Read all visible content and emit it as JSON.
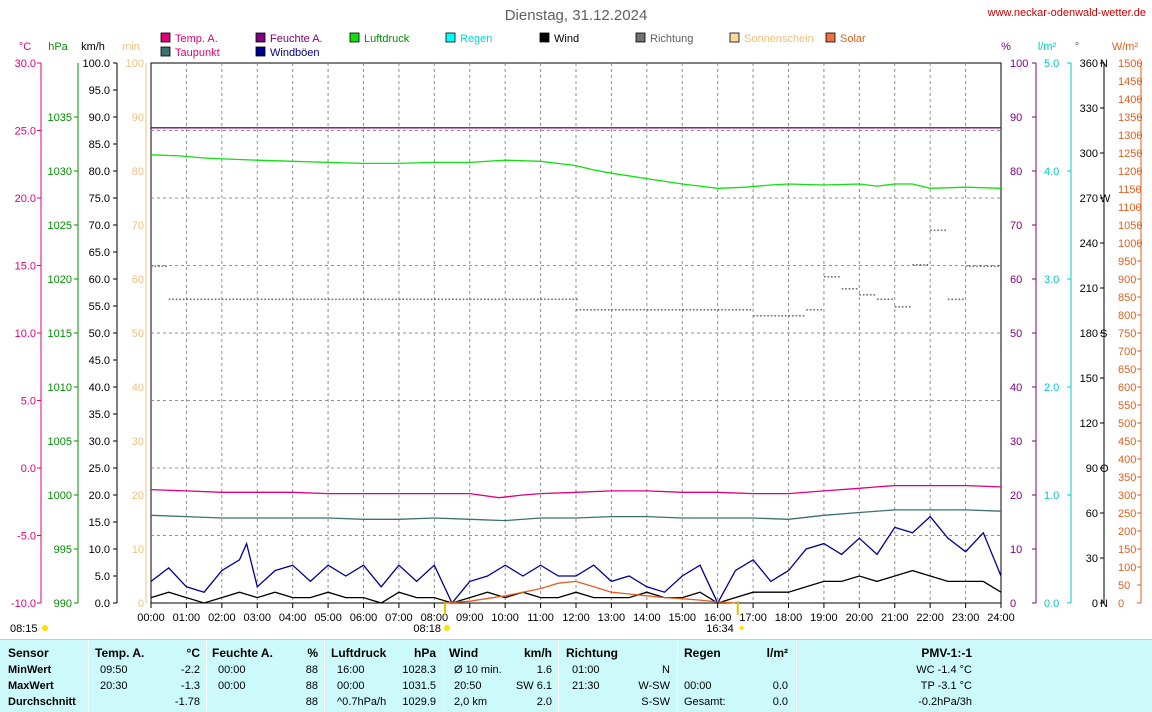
{
  "title": "Dienstag, 31.12.2024",
  "site": "www.neckar-odenwald-wetter.de",
  "legend": [
    {
      "label": "Temp. A.",
      "color": "#e0007a",
      "col": 0,
      "row": 0
    },
    {
      "label": "Taupunkt",
      "color": "#e0007a",
      "swatch": "#3a7070",
      "col": 0,
      "row": 1
    },
    {
      "label": "Feuchte A.",
      "color": "#800080",
      "col": 1,
      "row": 0
    },
    {
      "label": "Windböen",
      "color": "#000080",
      "swatch": "#000090",
      "col": 1,
      "row": 1
    },
    {
      "label": "Luftdruck",
      "color": "#009000",
      "swatch": "#10e010",
      "col": 2,
      "row": 0
    },
    {
      "label": "Regen",
      "color": "#00d8d8",
      "swatch": "#00ffff",
      "col": 3,
      "row": 0
    },
    {
      "label": "Wind",
      "color": "#000000",
      "col": 4,
      "row": 0
    },
    {
      "label": "Richtung",
      "color": "#606060",
      "swatch": "#707070",
      "col": 5,
      "row": 0
    },
    {
      "label": "Sonnenschein",
      "color": "#f0c080",
      "swatch": "#ffd8a0",
      "col": 6,
      "row": 0
    },
    {
      "label": "Solar",
      "color": "#e06020",
      "swatch": "#f07040",
      "col": 7,
      "row": 0
    }
  ],
  "axis_units": {
    "temp": "°C",
    "pressure": "hPa",
    "wind": "km/h",
    "min": "min",
    "humidity": "%",
    "rain": "l/m²",
    "direction": "°",
    "solar": "W/m²"
  },
  "axes": {
    "temp_ticks": [
      "30.0",
      "25.0",
      "20.0",
      "15.0",
      "10.0",
      "5.0",
      "0.0",
      "-5.0",
      "-10.0"
    ],
    "pressure_ticks": [
      "1035",
      "1030",
      "1025",
      "1020",
      "1015",
      "1010",
      "1005",
      "1000",
      "995",
      "990"
    ],
    "wind_ticks": [
      "100.0",
      "95.0",
      "90.0",
      "85.0",
      "80.0",
      "75.0",
      "70.0",
      "65.0",
      "60.0",
      "55.0",
      "50.0",
      "45.0",
      "40.0",
      "35.0",
      "30.0",
      "25.0",
      "20.0",
      "15.0",
      "10.0",
      "5.0",
      "0.0"
    ],
    "min_ticks": [
      "100",
      "90",
      "80",
      "70",
      "60",
      "50",
      "40",
      "30",
      "20",
      "10",
      "0"
    ],
    "humidity_ticks": [
      "100",
      "90",
      "80",
      "70",
      "60",
      "50",
      "40",
      "30",
      "20",
      "10",
      "0"
    ],
    "rain_ticks": [
      "5.0",
      "4.0",
      "3.0",
      "2.0",
      "1.0",
      "0.0"
    ],
    "direction_ticks": [
      "360",
      "330",
      "300",
      "270",
      "240",
      "210",
      "180",
      "150",
      "120",
      "90",
      "60",
      "30",
      "0"
    ],
    "direction_letters": [
      "N",
      "",
      "",
      "W",
      "",
      "",
      "S",
      "",
      "",
      "O",
      "",
      "",
      "N"
    ],
    "solar_ticks": [
      "1500",
      "1450",
      "1400",
      "1350",
      "1300",
      "1250",
      "1200",
      "1150",
      "1100",
      "1050",
      "1000",
      "950",
      "900",
      "850",
      "800",
      "750",
      "700",
      "650",
      "600",
      "550",
      "500",
      "450",
      "400",
      "350",
      "300",
      "250",
      "200",
      "150",
      "100",
      "50",
      "0"
    ],
    "time_ticks": [
      "00:00",
      "01:00",
      "02:00",
      "03:00",
      "04:00",
      "05:00",
      "06:00",
      "07:00",
      "08:00",
      "09:00",
      "10:00",
      "11:00",
      "12:00",
      "13:00",
      "14:00",
      "15:00",
      "16:00",
      "17:00",
      "18:00",
      "19:00",
      "20:00",
      "21:00",
      "22:00",
      "23:00",
      "24:00"
    ]
  },
  "sun_markers": {
    "sunrise": "08:18",
    "sunset": "16:34",
    "note": "08:15"
  },
  "chart_data": {
    "type": "line",
    "title": "Dienstag, 31.12.2024",
    "x_unit": "hour of day",
    "xlim": [
      0,
      24
    ],
    "grid": true,
    "legend_position": "top",
    "series": [
      {
        "name": "Luftdruck",
        "unit": "hPa",
        "color": "#10e010",
        "ylim": [
          990,
          1040
        ],
        "x": [
          0,
          0.8,
          1.5,
          2.2,
          3,
          4,
          5,
          6,
          7,
          8,
          9,
          10,
          11,
          12,
          12.5,
          13,
          14,
          15,
          15.5,
          16,
          16.8,
          17.5,
          18,
          19,
          20,
          20.5,
          21,
          21.5,
          22,
          23,
          24
        ],
        "y": [
          1031.5,
          1031.4,
          1031.2,
          1031.1,
          1031.0,
          1030.9,
          1030.8,
          1030.7,
          1030.7,
          1030.8,
          1030.8,
          1031.0,
          1030.9,
          1030.5,
          1030.1,
          1029.8,
          1029.3,
          1028.8,
          1028.6,
          1028.4,
          1028.5,
          1028.7,
          1028.8,
          1028.7,
          1028.8,
          1028.6,
          1028.8,
          1028.8,
          1028.4,
          1028.5,
          1028.4
        ]
      },
      {
        "name": "Feuchte A.",
        "unit": "%",
        "color": "#800080",
        "ylim": [
          0,
          100
        ],
        "x": [
          0,
          24
        ],
        "y": [
          88,
          88
        ]
      },
      {
        "name": "Temp. A.",
        "unit": "°C",
        "color": "#e0007a",
        "ylim": [
          -10,
          30
        ],
        "x": [
          0,
          1,
          2,
          3,
          4,
          5,
          6,
          7,
          8,
          9,
          9.83,
          10.5,
          11,
          12,
          13,
          14,
          15,
          16,
          17,
          18,
          19,
          20,
          20.5,
          21,
          22,
          23,
          24
        ],
        "y": [
          -1.6,
          -1.7,
          -1.8,
          -1.8,
          -1.8,
          -1.9,
          -1.9,
          -1.9,
          -1.9,
          -1.9,
          -2.2,
          -2.0,
          -1.9,
          -1.8,
          -1.7,
          -1.7,
          -1.8,
          -1.8,
          -1.9,
          -1.9,
          -1.7,
          -1.5,
          -1.4,
          -1.3,
          -1.3,
          -1.3,
          -1.4
        ]
      },
      {
        "name": "Taupunkt",
        "unit": "°C",
        "color": "#3a7070",
        "ylim": [
          -10,
          30
        ],
        "x": [
          0,
          1,
          2,
          3,
          4,
          5,
          6,
          7,
          8,
          9,
          10,
          11,
          12,
          13,
          14,
          15,
          16,
          17,
          18,
          19,
          20,
          21,
          22,
          23,
          24
        ],
        "y": [
          -3.5,
          -3.6,
          -3.7,
          -3.7,
          -3.7,
          -3.7,
          -3.8,
          -3.8,
          -3.7,
          -3.8,
          -3.9,
          -3.7,
          -3.7,
          -3.6,
          -3.6,
          -3.7,
          -3.7,
          -3.7,
          -3.8,
          -3.5,
          -3.3,
          -3.1,
          -3.1,
          -3.1,
          -3.2
        ]
      },
      {
        "name": "Windböen",
        "unit": "km/h",
        "color": "#000090",
        "ylim": [
          0,
          100
        ],
        "x": [
          0,
          0.5,
          1,
          1.5,
          2,
          2.5,
          2.7,
          3,
          3.5,
          4,
          4.5,
          5,
          5.5,
          6,
          6.5,
          7,
          7.5,
          8,
          8.5,
          9,
          9.5,
          10,
          10.5,
          11,
          11.5,
          12,
          12.5,
          13,
          13.5,
          14,
          14.5,
          15,
          15.5,
          16,
          16.5,
          17,
          17.5,
          18,
          18.5,
          19,
          19.5,
          20,
          20.5,
          21,
          21.5,
          22,
          22.5,
          23,
          23.5,
          24
        ],
        "y": [
          4,
          6.5,
          3,
          2,
          6,
          8,
          11,
          3,
          6,
          7,
          4,
          7,
          5,
          7,
          3,
          7,
          4,
          7,
          0,
          4,
          5,
          7,
          5,
          7,
          5,
          5,
          7,
          4,
          5,
          3,
          2,
          5,
          7,
          0,
          6,
          8,
          4,
          6,
          10,
          11,
          9,
          12,
          9,
          14,
          13,
          16,
          12,
          9.5,
          13,
          5
        ]
      },
      {
        "name": "Wind",
        "unit": "km/h",
        "color": "#000000",
        "ylim": [
          0,
          100
        ],
        "x": [
          0,
          0.5,
          1,
          1.5,
          2,
          2.5,
          3,
          3.5,
          4,
          4.5,
          5,
          5.5,
          6,
          6.5,
          7,
          7.5,
          8,
          8.5,
          9,
          9.5,
          10,
          10.5,
          11,
          11.5,
          12,
          12.5,
          13,
          13.5,
          14,
          14.5,
          15,
          15.5,
          16,
          16.5,
          17,
          17.5,
          18,
          18.5,
          19,
          19.5,
          20,
          20.5,
          21,
          21.5,
          22,
          22.5,
          23,
          23.5,
          24
        ],
        "y": [
          1,
          2,
          1,
          0,
          1,
          2,
          1,
          2,
          1,
          1,
          2,
          1,
          1,
          0,
          2,
          1,
          1,
          0,
          1,
          2,
          1,
          2,
          1,
          1,
          2,
          1,
          1,
          1,
          2,
          1,
          1,
          2,
          0,
          1,
          2,
          2,
          2,
          3,
          4,
          4,
          5,
          4,
          5,
          6,
          5,
          4,
          4,
          4,
          2
        ]
      },
      {
        "name": "Solar",
        "unit": "W/m²",
        "color": "#e06020",
        "ylim": [
          0,
          1500
        ],
        "x": [
          8.3,
          9,
          10,
          11,
          11.5,
          12,
          12.5,
          13,
          13.5,
          14,
          14.5,
          15,
          15.5,
          16,
          16.5
        ],
        "y": [
          0,
          5,
          20,
          40,
          55,
          60,
          45,
          30,
          25,
          20,
          15,
          12,
          8,
          3,
          0
        ]
      },
      {
        "name": "Richtung",
        "unit": "°",
        "color": "#707070",
        "ylim": [
          0,
          360
        ],
        "x": [
          0,
          0.5,
          1,
          2,
          3,
          4,
          5,
          6,
          7,
          8,
          9,
          10,
          11,
          12,
          12.5,
          13,
          14,
          15,
          16,
          17,
          18,
          18.5,
          19,
          19.5,
          20,
          20.5,
          21,
          21.5,
          22,
          22.5,
          23,
          24
        ],
        "y": [
          225,
          203,
          203,
          203,
          203,
          203,
          203,
          203,
          203,
          203,
          203,
          203,
          203,
          196,
          196,
          196,
          196,
          196,
          196,
          192,
          192,
          196,
          218,
          210,
          206,
          203,
          198,
          226,
          249,
          203,
          225,
          225
        ]
      }
    ]
  },
  "table": {
    "headers": {
      "sensor": "Sensor",
      "temp": "Temp. A.",
      "temp_unit": "°C",
      "hum": "Feuchte A.",
      "hum_unit": "%",
      "press": "Luftdruck",
      "press_unit": "hPa",
      "wind": "Wind",
      "wind_unit": "km/h",
      "dir": "Richtung",
      "rain": "Regen",
      "rain_unit": "l/m²",
      "pmv": "PMV-1:-1"
    },
    "rows": [
      {
        "label": "MinWert",
        "temp_time": "09:50",
        "temp_val": "-2.2",
        "hum_time": "00:00",
        "hum_val": "88",
        "press_time": "16:00",
        "press_val": "1028.3",
        "wind_desc": "Ø 10 min.",
        "wind_val": "1.6",
        "dir_time": "01:00",
        "dir_val": "N",
        "rain_time": "",
        "rain_val": "",
        "pmv": "WC -1.4 °C"
      },
      {
        "label": "MaxWert",
        "temp_time": "20:30",
        "temp_val": "-1.3",
        "hum_time": "00:00",
        "hum_val": "88",
        "press_time": "00:00",
        "press_val": "1031.5",
        "wind_desc": "20:50",
        "wind_val": "SW 6.1",
        "dir_time": "21:30",
        "dir_val": "W-SW",
        "rain_time": "00:00",
        "rain_val": "0.0",
        "pmv": "TP -3.1 °C"
      },
      {
        "label": "Durchschnitt",
        "temp_time": "",
        "temp_val": "-1.78",
        "hum_time": "",
        "hum_val": "88",
        "press_time": "^0.7hPa/h",
        "press_val": "1029.9",
        "wind_desc": "2,0 km",
        "wind_val": "2.0",
        "dir_time": "",
        "dir_val": "S-SW",
        "rain_time": "Gesamt:",
        "rain_val": "0.0",
        "pmv": "-0.2hPa/3h"
      }
    ]
  }
}
